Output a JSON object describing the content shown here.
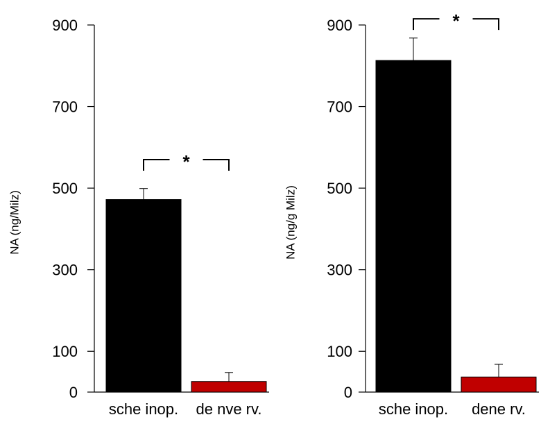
{
  "chart_data": [
    {
      "type": "bar",
      "categories": [
        "scheinop.",
        "denerv."
      ],
      "category_labels": [
        "sche inop.",
        "de nve rv."
      ],
      "values": [
        472,
        26
      ],
      "errors": [
        27,
        22
      ],
      "colors": [
        "#000000",
        "#c00000"
      ],
      "ylabel": "NA (ng/Milz)",
      "yticks": [
        0,
        100,
        300,
        500,
        700,
        900
      ],
      "ylim": [
        0,
        900
      ],
      "significance": {
        "between": [
          0,
          1
        ],
        "label": "*",
        "y": 570
      }
    },
    {
      "type": "bar",
      "categories": [
        "scheinop.",
        "denerv."
      ],
      "category_labels": [
        "sche inop.",
        "dene rv."
      ],
      "values": [
        813,
        37
      ],
      "errors": [
        55,
        31
      ],
      "colors": [
        "#000000",
        "#c00000"
      ],
      "ylabel": "NA (ng/g Milz)",
      "yticks": [
        0,
        100,
        300,
        500,
        700,
        900
      ],
      "ylim": [
        0,
        900
      ],
      "significance": {
        "between": [
          0,
          1
        ],
        "label": "*",
        "y": 915
      }
    }
  ]
}
